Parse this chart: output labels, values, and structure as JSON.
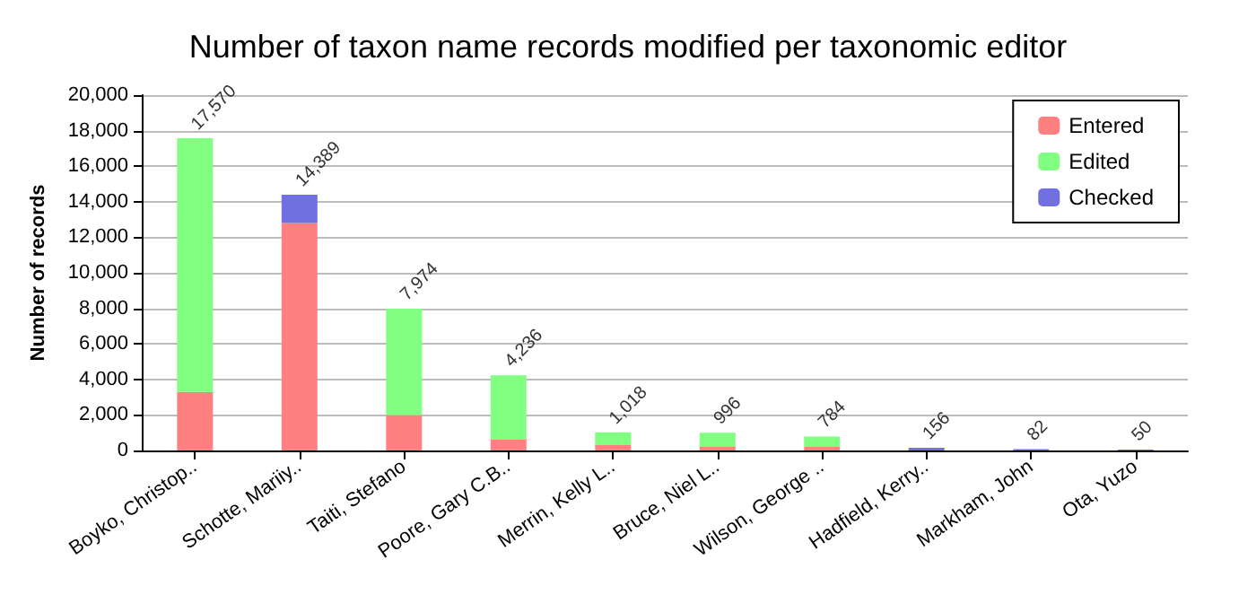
{
  "chart_data": {
    "type": "bar",
    "title": "Number of taxon name records modified per taxonomic editor",
    "ylabel": "Number of records",
    "categories": [
      "Boyko, Christop..",
      "Schotte, Mariiy..",
      "Taiti, Stefano",
      "Poore, Gary C.B..",
      "Merrin, Kelly L..",
      "Bruce, Niel L..",
      "Wilson, George ..",
      "Hadfield, Kerry..",
      "Markham, John",
      "Ota, Yuzo"
    ],
    "series": [
      {
        "name": "Entered",
        "color": "#ff8080",
        "values": [
          3300,
          12800,
          2000,
          600,
          300,
          200,
          200,
          null,
          null,
          null
        ]
      },
      {
        "name": "Edited",
        "color": "#80ff80",
        "values": [
          14270,
          null,
          5974,
          3636,
          718,
          796,
          584,
          null,
          null,
          null
        ]
      },
      {
        "name": "Checked",
        "color": "#7070e0",
        "values": [
          null,
          1589,
          null,
          null,
          null,
          null,
          null,
          156,
          82,
          50
        ]
      }
    ],
    "stacked": true,
    "totals": [
      "17,570",
      "14,389",
      "7,974",
      "4,236",
      "1,018",
      "996",
      "784",
      "156",
      "82",
      "50"
    ],
    "ylim": [
      0,
      20000
    ],
    "yticks": [
      0,
      {
        "value": 2000,
        "label": "2,000"
      },
      {
        "value": 4000,
        "label": "4,000"
      },
      {
        "value": 6000,
        "label": "6,000"
      },
      {
        "value": 8000,
        "label": "8,000"
      },
      {
        "value": 10000,
        "label": "10,000"
      },
      {
        "value": 12000,
        "label": "12,000"
      },
      {
        "value": 14000,
        "label": "14,000"
      },
      {
        "value": 16000,
        "label": "16,000"
      },
      {
        "value": 18000,
        "label": "18,000"
      },
      {
        "value": 20000,
        "label": "20,000"
      }
    ],
    "grid": "y",
    "legend": "top right"
  }
}
